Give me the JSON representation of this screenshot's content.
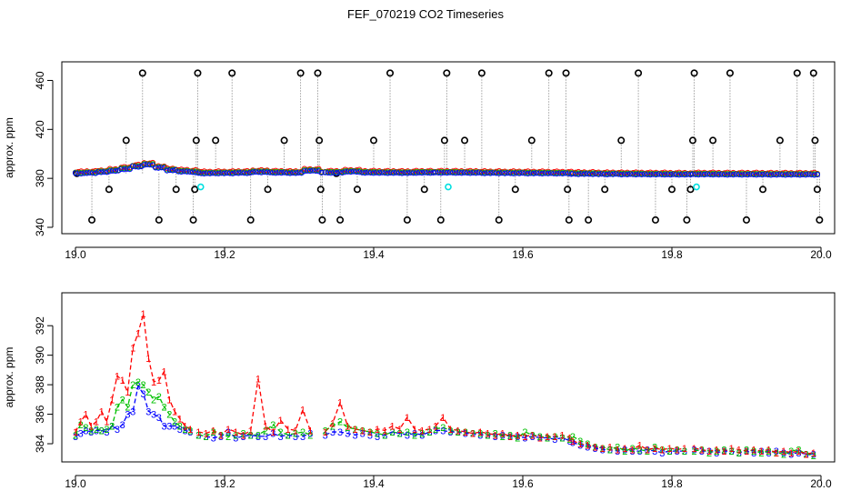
{
  "title": "FEF_070219  CO2 Timeseries",
  "colors": {
    "series1": "#ff0000",
    "series2": "#00c000",
    "series3": "#0000ff",
    "outlier": "#000000",
    "flagged": "#00e0e0",
    "connector": "#8a8a8a"
  },
  "chart_data": [
    {
      "type": "scatter",
      "ylabel": "approx. ppm",
      "xlim": [
        19.0,
        20.0
      ],
      "ylim": [
        340,
        470
      ],
      "xticks": [
        "19.0",
        "19.2",
        "19.4",
        "19.6",
        "19.8",
        "20.0"
      ],
      "yticks": [
        "340",
        "380",
        "420",
        "460"
      ],
      "segments": [
        {
          "x": [
            19.0,
            19.165
          ],
          "level": [
            384.5,
            384.8,
            385.5,
            386.5,
            388,
            390,
            391.5,
            389,
            387,
            386,
            385.5,
            385.2
          ]
        },
        {
          "x": [
            19.165,
            19.33
          ],
          "level": [
            384.5,
            384.6,
            384.8,
            385.5,
            385.0,
            384.8,
            386.5,
            384.9
          ]
        },
        {
          "x": [
            19.335,
            19.48
          ],
          "level": [
            385.0,
            385.8,
            385.0,
            384.9,
            384.8,
            385.0,
            384.9
          ]
        },
        {
          "x": [
            19.483,
            19.665
          ],
          "level": [
            385.0,
            384.9,
            384.7,
            384.6,
            384.5,
            384.4,
            384.2
          ]
        },
        {
          "x": [
            19.667,
            19.825
          ],
          "level": [
            384.0,
            383.8,
            383.7,
            383.6,
            383.5,
            383.4
          ]
        },
        {
          "x": [
            19.828,
            19.995
          ],
          "level": [
            383.6,
            383.5,
            383.5,
            383.4,
            383.4,
            383.3
          ]
        }
      ],
      "outliers": [
        {
          "x": 19.002,
          "y": 384
        },
        {
          "x": 19.022,
          "y": 346
        },
        {
          "x": 19.045,
          "y": 371
        },
        {
          "x": 19.068,
          "y": 411
        },
        {
          "x": 19.09,
          "y": 466
        },
        {
          "x": 19.112,
          "y": 346
        },
        {
          "x": 19.135,
          "y": 371
        },
        {
          "x": 19.158,
          "y": 346
        },
        {
          "x": 19.16,
          "y": 371
        },
        {
          "x": 19.162,
          "y": 411
        },
        {
          "x": 19.164,
          "y": 466
        },
        {
          "x": 19.188,
          "y": 411
        },
        {
          "x": 19.21,
          "y": 466
        },
        {
          "x": 19.235,
          "y": 346
        },
        {
          "x": 19.258,
          "y": 371
        },
        {
          "x": 19.28,
          "y": 411
        },
        {
          "x": 19.302,
          "y": 466
        },
        {
          "x": 19.325,
          "y": 466
        },
        {
          "x": 19.327,
          "y": 411
        },
        {
          "x": 19.329,
          "y": 371
        },
        {
          "x": 19.331,
          "y": 346
        },
        {
          "x": 19.35,
          "y": 384
        },
        {
          "x": 19.355,
          "y": 346
        },
        {
          "x": 19.378,
          "y": 371
        },
        {
          "x": 19.4,
          "y": 411
        },
        {
          "x": 19.422,
          "y": 466
        },
        {
          "x": 19.445,
          "y": 346
        },
        {
          "x": 19.468,
          "y": 371
        },
        {
          "x": 19.49,
          "y": 346
        },
        {
          "x": 19.495,
          "y": 411
        },
        {
          "x": 19.498,
          "y": 466
        },
        {
          "x": 19.522,
          "y": 411
        },
        {
          "x": 19.545,
          "y": 466
        },
        {
          "x": 19.568,
          "y": 346
        },
        {
          "x": 19.59,
          "y": 371
        },
        {
          "x": 19.612,
          "y": 411
        },
        {
          "x": 19.635,
          "y": 466
        },
        {
          "x": 19.658,
          "y": 466
        },
        {
          "x": 19.66,
          "y": 371
        },
        {
          "x": 19.662,
          "y": 346
        },
        {
          "x": 19.688,
          "y": 346
        },
        {
          "x": 19.71,
          "y": 371
        },
        {
          "x": 19.732,
          "y": 411
        },
        {
          "x": 19.755,
          "y": 466
        },
        {
          "x": 19.778,
          "y": 346
        },
        {
          "x": 19.8,
          "y": 371
        },
        {
          "x": 19.82,
          "y": 346
        },
        {
          "x": 19.825,
          "y": 371
        },
        {
          "x": 19.828,
          "y": 411
        },
        {
          "x": 19.83,
          "y": 466
        },
        {
          "x": 19.855,
          "y": 411
        },
        {
          "x": 19.878,
          "y": 466
        },
        {
          "x": 19.9,
          "y": 346
        },
        {
          "x": 19.922,
          "y": 371
        },
        {
          "x": 19.945,
          "y": 411
        },
        {
          "x": 19.968,
          "y": 466
        },
        {
          "x": 19.99,
          "y": 466
        },
        {
          "x": 19.992,
          "y": 411
        },
        {
          "x": 19.995,
          "y": 371
        },
        {
          "x": 19.998,
          "y": 346
        }
      ],
      "flagged": [
        {
          "x": 19.168,
          "y": 373
        },
        {
          "x": 19.5,
          "y": 373
        },
        {
          "x": 19.833,
          "y": 373
        }
      ]
    },
    {
      "type": "line",
      "ylabel": "approx. ppm",
      "xlim": [
        19.0,
        20.0
      ],
      "ylim": [
        383.2,
        393.8
      ],
      "xticks": [
        "19.0",
        "19.2",
        "19.4",
        "19.6",
        "19.8",
        "20.0"
      ],
      "yticks": [
        "384",
        "386",
        "388",
        "390",
        "392"
      ],
      "symbols": [
        "1",
        "2",
        "3"
      ],
      "segments": [
        {
          "x": [
            19.0,
            19.007,
            19.014,
            19.021,
            19.028,
            19.035,
            19.042,
            19.049,
            19.056,
            19.063,
            19.07,
            19.077,
            19.084,
            19.091,
            19.098,
            19.105,
            19.112,
            19.119,
            19.126,
            19.133,
            19.14,
            19.147,
            19.154
          ],
          "series": [
            {
              "values": [
                384.8,
                385.5,
                386.0,
                385.2,
                385.5,
                386.2,
                385.5,
                387.0,
                388.6,
                388.3,
                387.5,
                390.5,
                391.5,
                392.8,
                389.8,
                388.2,
                388.3,
                388.9,
                387.0,
                386.2,
                385.7,
                385.2,
                385.0
              ]
            },
            {
              "values": [
                384.6,
                385.3,
                385.1,
                384.9,
                385.0,
                384.9,
                385.0,
                385.2,
                386.5,
                387.0,
                386.5,
                388.0,
                388.2,
                388.0,
                387.5,
                387.0,
                387.2,
                386.5,
                386.0,
                385.5,
                385.2,
                385.0,
                384.9
              ]
            },
            {
              "values": [
                384.5,
                384.7,
                384.9,
                384.8,
                384.9,
                384.9,
                384.8,
                385.2,
                385.0,
                385.3,
                386.0,
                386.2,
                387.9,
                387.4,
                386.2,
                386.0,
                385.8,
                385.2,
                385.2,
                385.2,
                385.0,
                384.9,
                384.8
              ]
            }
          ]
        },
        {
          "x": [
            19.165,
            19.175,
            19.185,
            19.195,
            19.205,
            19.215,
            19.225,
            19.235,
            19.245,
            19.255,
            19.265,
            19.275,
            19.285,
            19.295,
            19.305,
            19.315
          ],
          "series": [
            {
              "values": [
                384.8,
                384.7,
                384.9,
                384.6,
                385.0,
                384.8,
                384.6,
                384.9,
                388.4,
                385.2,
                384.8,
                385.6,
                385.0,
                384.9,
                386.3,
                384.9
              ]
            },
            {
              "values": [
                384.6,
                384.5,
                384.8,
                384.6,
                384.5,
                384.6,
                384.7,
                384.6,
                384.6,
                384.9,
                385.3,
                384.8,
                384.6,
                384.7,
                384.8,
                384.6
              ]
            },
            {
              "values": [
                384.6,
                384.5,
                384.4,
                384.5,
                384.8,
                384.4,
                384.5,
                384.6,
                384.5,
                384.5,
                384.7,
                384.5,
                384.6,
                384.5,
                384.5,
                384.7
              ]
            }
          ]
        },
        {
          "x": [
            19.335,
            19.345,
            19.355,
            19.365,
            19.375,
            19.385,
            19.395,
            19.405,
            19.415,
            19.425,
            19.435,
            19.445,
            19.455,
            19.465,
            19.475
          ],
          "series": [
            {
              "values": [
                384.8,
                385.4,
                386.8,
                385.2,
                385.0,
                384.9,
                384.8,
                385.0,
                384.9,
                385.2,
                385.0,
                385.8,
                385.0,
                384.9,
                385.0
              ]
            },
            {
              "values": [
                384.9,
                385.2,
                385.5,
                385.1,
                385.0,
                384.9,
                384.8,
                384.7,
                384.6,
                384.8,
                384.7,
                384.8,
                384.6,
                384.7,
                384.8
              ]
            },
            {
              "values": [
                384.6,
                384.8,
                384.8,
                384.7,
                384.6,
                384.7,
                384.6,
                384.5,
                384.6,
                384.8,
                384.7,
                384.6,
                384.7,
                384.6,
                384.8
              ]
            }
          ]
        },
        {
          "x": [
            19.483,
            19.493,
            19.503,
            19.513,
            19.523,
            19.533,
            19.543,
            19.553,
            19.563,
            19.573,
            19.583,
            19.593,
            19.603,
            19.613,
            19.623,
            19.633,
            19.643,
            19.653,
            19.663
          ],
          "series": [
            {
              "values": [
                385.2,
                385.8,
                385.0,
                384.9,
                384.8,
                384.7,
                384.8,
                384.7,
                384.6,
                384.7,
                384.5,
                384.6,
                384.5,
                384.6,
                384.4,
                384.5,
                384.5,
                384.6,
                384.4
              ]
            },
            {
              "values": [
                385.0,
                385.1,
                384.9,
                384.8,
                384.8,
                384.7,
                384.7,
                384.6,
                384.7,
                384.5,
                384.6,
                384.4,
                384.8,
                384.6,
                384.5,
                384.4,
                384.5,
                384.4,
                384.3
              ]
            },
            {
              "values": [
                384.9,
                384.9,
                384.8,
                384.8,
                384.7,
                384.7,
                384.6,
                384.6,
                384.5,
                384.6,
                384.5,
                384.5,
                384.4,
                384.5,
                384.4,
                384.4,
                384.3,
                384.4,
                384.2
              ]
            }
          ]
        },
        {
          "x": [
            19.667,
            19.677,
            19.687,
            19.697,
            19.707,
            19.717,
            19.727,
            19.737,
            19.747,
            19.757,
            19.767,
            19.777,
            19.787,
            19.797,
            19.807,
            19.817
          ],
          "series": [
            {
              "values": [
                384.2,
                384.0,
                383.9,
                383.8,
                383.7,
                383.8,
                383.6,
                383.7,
                383.6,
                383.9,
                383.6,
                383.7,
                383.6,
                383.7,
                383.6,
                383.7
              ]
            },
            {
              "values": [
                384.5,
                384.2,
                384.0,
                383.8,
                383.7,
                383.6,
                383.8,
                383.5,
                383.7,
                383.6,
                383.5,
                383.8,
                383.6,
                383.5,
                383.6,
                383.5
              ]
            },
            {
              "values": [
                384.1,
                383.9,
                383.8,
                383.7,
                383.6,
                383.6,
                383.5,
                383.6,
                383.5,
                383.5,
                383.6,
                383.5,
                383.4,
                383.5,
                383.5,
                383.5
              ]
            }
          ]
        },
        {
          "x": [
            19.83,
            19.84,
            19.85,
            19.86,
            19.87,
            19.88,
            19.89,
            19.9,
            19.91,
            19.92,
            19.93,
            19.94,
            19.95,
            19.96,
            19.97,
            19.98,
            19.99
          ],
          "series": [
            {
              "values": [
                383.7,
                383.6,
                383.5,
                383.6,
                383.5,
                383.7,
                383.6,
                383.5,
                383.6,
                383.5,
                383.6,
                383.4,
                383.5,
                383.4,
                383.5,
                383.3,
                383.4
              ]
            },
            {
              "values": [
                383.5,
                383.6,
                383.4,
                383.5,
                383.6,
                383.5,
                383.4,
                383.6,
                383.5,
                383.4,
                383.5,
                383.4,
                383.3,
                383.5,
                383.6,
                383.3,
                383.2
              ]
            },
            {
              "values": [
                383.6,
                383.5,
                383.5,
                383.4,
                383.5,
                383.5,
                383.4,
                383.5,
                383.4,
                383.5,
                383.4,
                383.5,
                383.4,
                383.3,
                383.4,
                383.3,
                383.3
              ]
            }
          ]
        }
      ]
    }
  ]
}
